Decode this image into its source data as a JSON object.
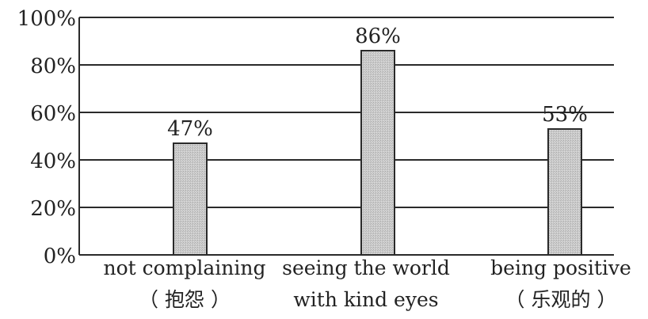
{
  "chart_data": {
    "type": "bar",
    "categories": [
      [
        "not complaining",
        "（ 抱怨 ）"
      ],
      [
        "seeing the world",
        "with kind eyes"
      ],
      [
        "being positive",
        "（ 乐观的 ）"
      ]
    ],
    "values": [
      47,
      86,
      53
    ],
    "data_labels": [
      "47%",
      "86%",
      "53%"
    ],
    "title": "",
    "xlabel": "",
    "ylabel": "",
    "ylim": [
      0,
      100
    ],
    "yticks": [
      0,
      20,
      40,
      60,
      80,
      100
    ],
    "ytick_labels": [
      "0%",
      "20%",
      "40%",
      "60%",
      "80%",
      "100%"
    ],
    "grid": true,
    "legend": "none"
  },
  "colors": {
    "bar_fill": "#c8c8c8",
    "bar_stroke": "#2a2a2a",
    "grid": "#2a2a2a",
    "text": "#222222"
  }
}
